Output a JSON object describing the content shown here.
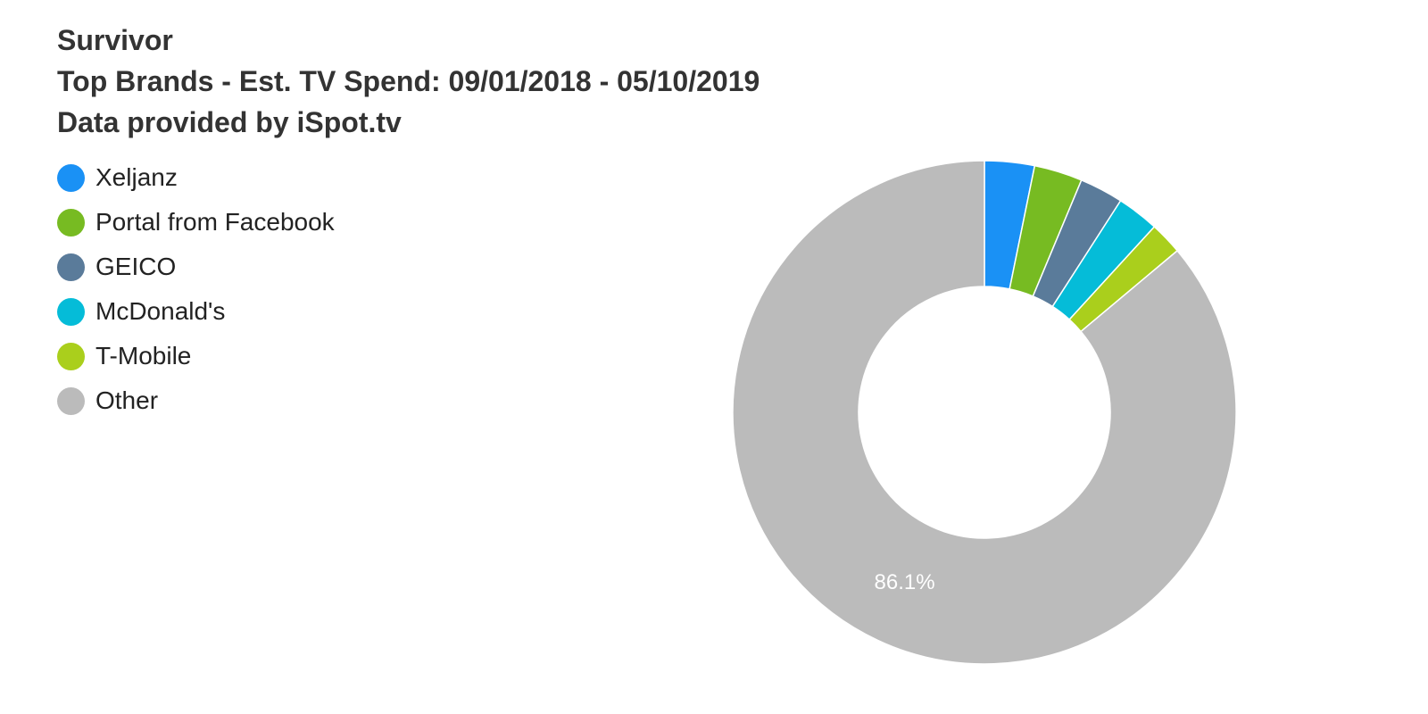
{
  "chart_data": {
    "type": "pie",
    "title": "Survivor",
    "subtitle": "Top Brands - Est. TV Spend: 09/01/2018 - 05/10/2019",
    "caption": "Data provided by iSpot.tv",
    "legend_position": "top-left",
    "donut": true,
    "categories": [
      "Xeljanz",
      "Portal from Facebook",
      "GEICO",
      "McDonald's",
      "T-Mobile",
      "Other"
    ],
    "values": [
      3.2,
      3.1,
      2.8,
      2.7,
      2.1,
      86.1
    ],
    "colors": [
      "#1a91f5",
      "#77bb22",
      "#5a7b9a",
      "#05bcd8",
      "#aacf1c",
      "#bbbbbb"
    ],
    "data_labels": [
      "",
      "",
      "",
      "",
      "",
      "86.1%"
    ],
    "unit": "%"
  }
}
